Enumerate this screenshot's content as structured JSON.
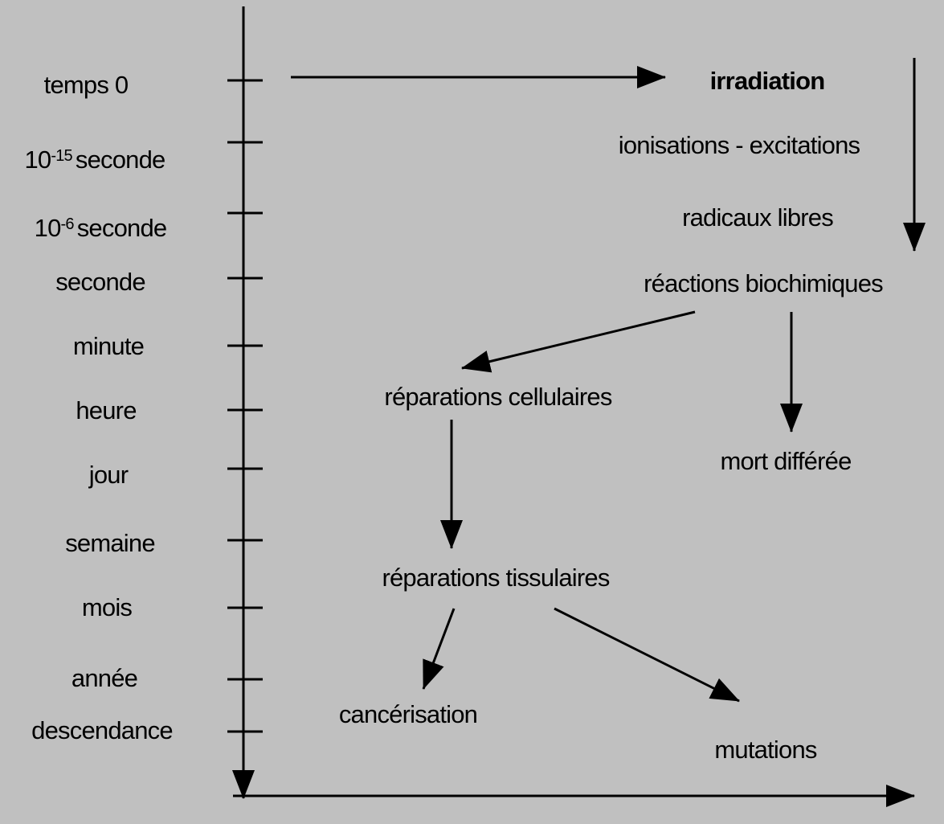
{
  "timeline": [
    {
      "label": "temps 0"
    },
    {
      "base": "10",
      "exp": "-15",
      "unit": "seconde"
    },
    {
      "base": "10",
      "exp": "-6",
      "unit": "seconde"
    },
    {
      "label": "seconde"
    },
    {
      "label": "minute"
    },
    {
      "label": "heure"
    },
    {
      "label": "jour"
    },
    {
      "label": "semaine"
    },
    {
      "label": "mois"
    },
    {
      "label": "année"
    },
    {
      "label": "descendance"
    }
  ],
  "nodes": [
    {
      "label": "irradiation"
    },
    {
      "label": "ionisations - excitations"
    },
    {
      "label": "radicaux libres"
    },
    {
      "label": "réactions biochimiques"
    },
    {
      "label": "réparations cellulaires"
    },
    {
      "label": "mort différée"
    },
    {
      "label": "réparations tissulaires"
    },
    {
      "label": "cancérisation"
    },
    {
      "label": "mutations"
    }
  ]
}
